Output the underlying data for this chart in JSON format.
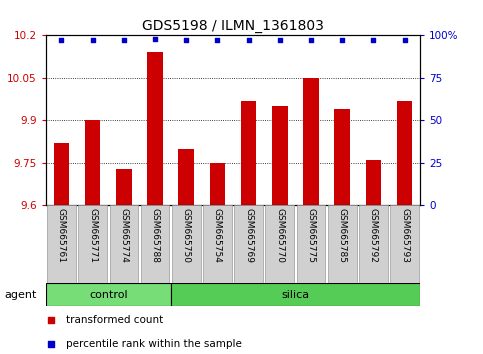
{
  "title": "GDS5198 / ILMN_1361803",
  "samples": [
    "GSM665761",
    "GSM665771",
    "GSM665774",
    "GSM665788",
    "GSM665750",
    "GSM665754",
    "GSM665769",
    "GSM665770",
    "GSM665775",
    "GSM665785",
    "GSM665792",
    "GSM665793"
  ],
  "transformed_counts": [
    9.82,
    9.9,
    9.73,
    10.14,
    9.8,
    9.75,
    9.97,
    9.95,
    10.05,
    9.94,
    9.76,
    9.97
  ],
  "percentile_ranks": [
    97,
    97,
    97,
    98,
    97,
    97,
    97,
    97,
    97,
    97,
    97,
    97
  ],
  "groups": [
    {
      "label": "control",
      "start": 0,
      "end": 4,
      "color": "#77dd77"
    },
    {
      "label": "silica",
      "start": 4,
      "end": 12,
      "color": "#55cc55"
    }
  ],
  "ylim_left": [
    9.6,
    10.2
  ],
  "ylim_right": [
    0,
    100
  ],
  "yticks_left": [
    9.6,
    9.75,
    9.9,
    10.05,
    10.2
  ],
  "yticks_right": [
    0,
    25,
    50,
    75,
    100
  ],
  "ytick_labels_left": [
    "9.6",
    "9.75",
    "9.9",
    "10.05",
    "10.2"
  ],
  "ytick_labels_right": [
    "0",
    "25",
    "50",
    "75",
    "100%"
  ],
  "grid_yticks": [
    9.75,
    9.9,
    10.05
  ],
  "bar_color": "#cc0000",
  "dot_color": "#0000cc",
  "bar_width": 0.5,
  "legend_items": [
    {
      "label": "transformed count",
      "color": "#cc0000"
    },
    {
      "label": "percentile rank within the sample",
      "color": "#0000cc"
    }
  ],
  "title_fontsize": 10,
  "tick_fontsize": 7.5,
  "label_fontsize": 7.5,
  "xtick_fontsize": 6.5,
  "group_fontsize": 8
}
